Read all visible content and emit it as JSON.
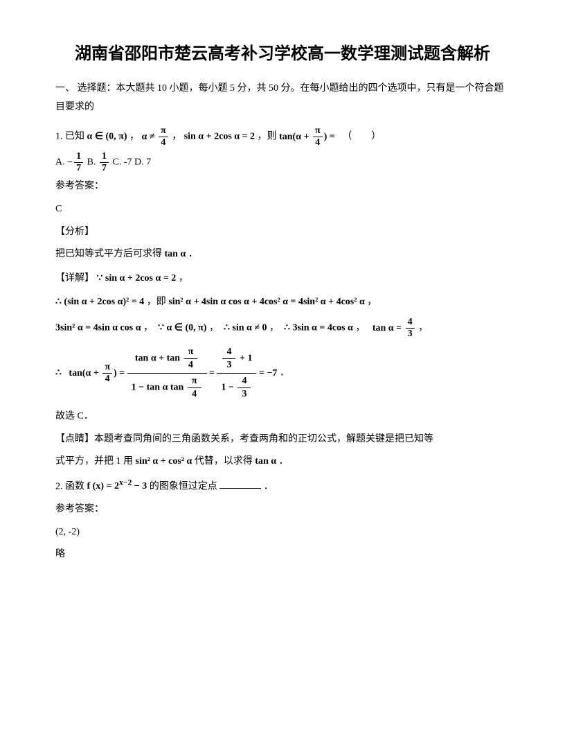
{
  "title": "湖南省邵阳市楚云高考补习学校高一数学理测试题含解析",
  "section1": "一、 选择题：本大题共 10 小题，每小题 5 分，共 50 分。在每小题给出的四个选项中，只有是一个符合题目要求的",
  "q1": {
    "stem_prefix": "1. 已知",
    "cond1": "α ∈ (0, π)",
    "sep": "，",
    "cond2_lhs": "α ≠ ",
    "cond3": "sin α + 2cos α = 2",
    "then_text": "，则",
    "ask_prefix": "tan(α + ",
    "ask_suffix": ") = ",
    "paren": "（　　）",
    "optA_prefix": "A. ",
    "optA_sign": "−",
    "optB_prefix": " B. ",
    "optC": " C. -7 ",
    "optD": " D. 7",
    "ans_label": "参考答案：",
    "ans": "C",
    "analysis_label": "【分析】",
    "analysis_text_1": "把已知等式平方后可求得",
    "tana": "tan α",
    "period": "．",
    "detail_label": "【详解】",
    "detail_since": "∵",
    "detail_eq1": "sin α + 2cos α = 2",
    "comma": "，",
    "therefore": "∴",
    "eq2": "(sin α + 2cos α)² = 4",
    "ji": "，即",
    "eq3": "sin² α + 4sin α cos α + 4cos² α = 4sin² α + 4cos² α",
    "eq4": "3sin² α = 4sin α cos α",
    "since2": "∵",
    "cond_again": "α ∈ (0, π)",
    "therefore2": "∴",
    "neq0": "sin α ≠ 0",
    "therefore3": "∴",
    "eq5": "3sin α = 4cos α",
    "tana_eq": "tan α = ",
    "tan_expand_lhs": "tan(α + ",
    "tan_expand_mid": ") = ",
    "tan_num": "tan α + tan ",
    "tan_den": "1 − tan α tan ",
    "eq_minus7": " = −7",
    "gu": "故选 C．",
    "dianjing_label": "【点睛】",
    "dianjing_1": "本题考查同角间的三角函数关系，考查两角和的正切公式，解题关键是把已知等",
    "dianjing_2a": "式平方，并把 1 用",
    "sin2cos2": "sin² α + cos² α",
    "dianjing_2b": " 代替，以求得",
    "pi": "π",
    "four": "4",
    "one": "1",
    "seven": "7",
    "three": "3",
    "fournum": "4"
  },
  "q2": {
    "stem_prefix": "2. 函数",
    "func": "f (x) = 2",
    "exp": "x−2",
    "minus3": " − 3",
    "stem_suffix": " 的图象恒过定点",
    "period": "．",
    "ans_label": "参考答案：",
    "ans": "(2, -2)",
    "lue": "略"
  }
}
